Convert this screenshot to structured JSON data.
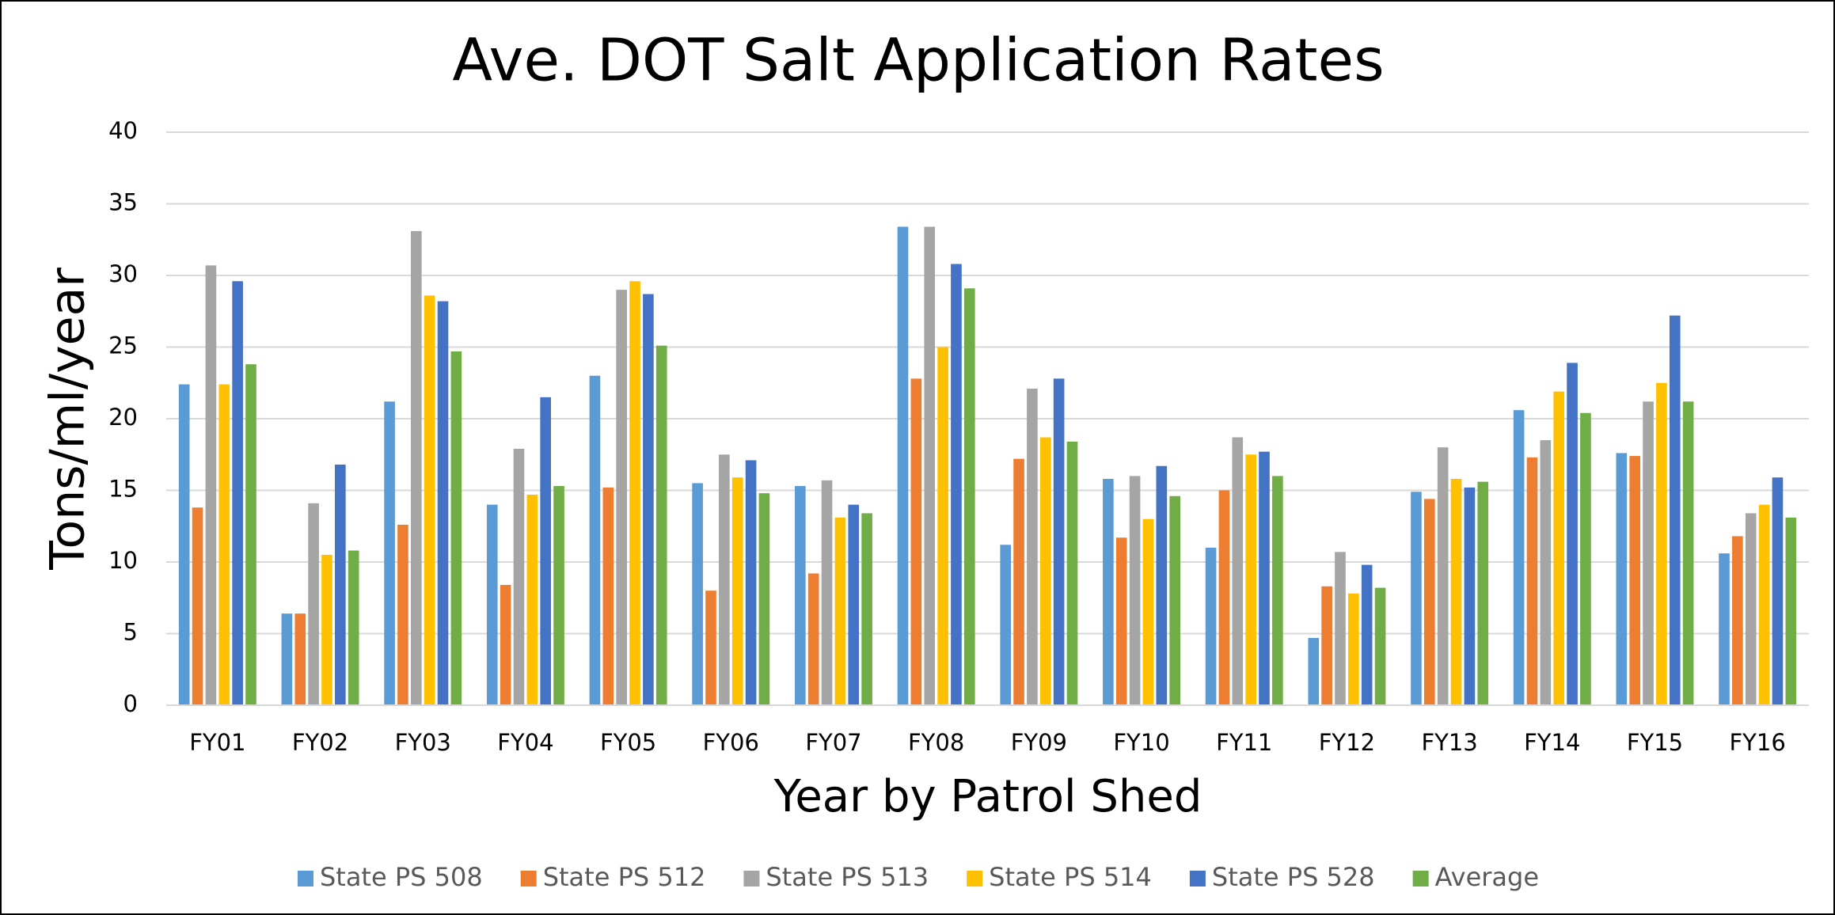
{
  "chart_data": {
    "type": "bar",
    "title": "Ave. DOT Salt Application Rates",
    "x_label": "Year by Patrol Shed",
    "y_label": "Tons/ml/year",
    "categories": [
      "FY01",
      "FY02",
      "FY03",
      "FY04",
      "FY05",
      "FY06",
      "FY07",
      "FY08",
      "FY09",
      "FY10",
      "FY11",
      "FY12",
      "FY13",
      "FY14",
      "FY15",
      "FY16"
    ],
    "series": [
      {
        "name": "State PS 508",
        "color": "#5b9bd5",
        "values": [
          22.4,
          6.4,
          21.2,
          14.0,
          23.0,
          15.5,
          15.3,
          33.4,
          11.2,
          15.8,
          11.0,
          4.7,
          14.9,
          20.6,
          17.6,
          10.6
        ]
      },
      {
        "name": "State PS 512",
        "color": "#ed7d31",
        "values": [
          13.8,
          6.4,
          12.6,
          8.4,
          15.2,
          8.0,
          9.2,
          22.8,
          17.2,
          11.7,
          15.0,
          8.3,
          14.4,
          17.3,
          17.4,
          11.8
        ]
      },
      {
        "name": "State PS 513",
        "color": "#a5a5a5",
        "values": [
          30.7,
          14.1,
          33.1,
          17.9,
          29.0,
          17.5,
          15.7,
          33.4,
          22.1,
          16.0,
          18.7,
          10.7,
          18.0,
          18.5,
          21.2,
          13.4
        ]
      },
      {
        "name": "State PS 514",
        "color": "#ffc000",
        "values": [
          22.4,
          10.5,
          28.6,
          14.7,
          29.6,
          15.9,
          13.1,
          25.0,
          18.7,
          13.0,
          17.5,
          7.8,
          15.8,
          21.9,
          22.5,
          14.0
        ]
      },
      {
        "name": "State PS 528",
        "color": "#4472c4",
        "values": [
          29.6,
          16.8,
          28.2,
          21.5,
          28.7,
          17.1,
          14.0,
          30.8,
          22.8,
          16.7,
          17.7,
          9.8,
          15.2,
          23.9,
          27.2,
          15.9
        ]
      },
      {
        "name": "Average",
        "color": "#70ad47",
        "values": [
          23.8,
          10.8,
          24.7,
          15.3,
          25.1,
          14.8,
          13.4,
          29.1,
          18.4,
          14.6,
          16.0,
          8.2,
          15.6,
          20.4,
          21.2,
          13.1
        ]
      }
    ],
    "ylim": [
      0,
      40
    ],
    "yticks": [
      0,
      5,
      10,
      15,
      20,
      25,
      30,
      35,
      40
    ],
    "grid": true,
    "legend": "bottom"
  }
}
